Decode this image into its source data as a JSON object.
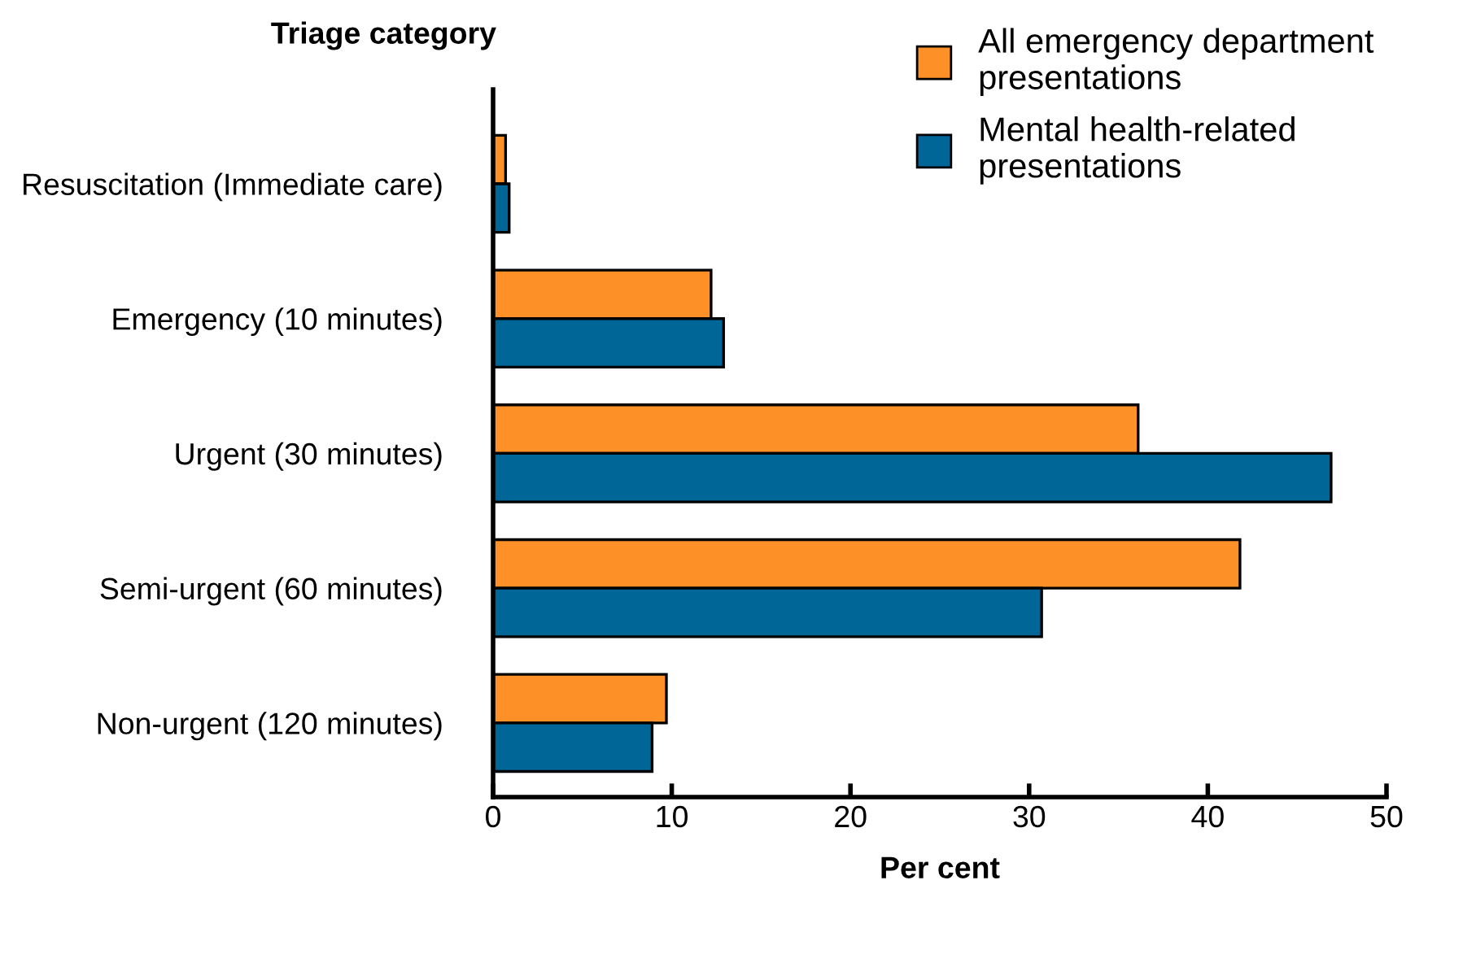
{
  "chart_data": {
    "type": "bar",
    "orientation": "horizontal",
    "ylabel": "Triage category",
    "xlabel": "Per cent",
    "categories": [
      "Resuscitation (Immediate care)",
      "Emergency (10 minutes)",
      "Urgent (30 minutes)",
      "Semi-urgent (60 minutes)",
      "Non-urgent (120 minutes)"
    ],
    "series": [
      {
        "name": "All emergency department presentations",
        "color": "#fd9127",
        "values": [
          0.7,
          12.2,
          36.1,
          41.8,
          9.7
        ]
      },
      {
        "name": "Mental health-related presentations",
        "color": "#006597",
        "values": [
          0.9,
          12.9,
          46.9,
          30.7,
          8.9
        ]
      }
    ],
    "xlim": [
      0,
      50
    ],
    "xticks": [
      0,
      10,
      20,
      30,
      40,
      50
    ],
    "grid": false,
    "legend": "top right"
  }
}
